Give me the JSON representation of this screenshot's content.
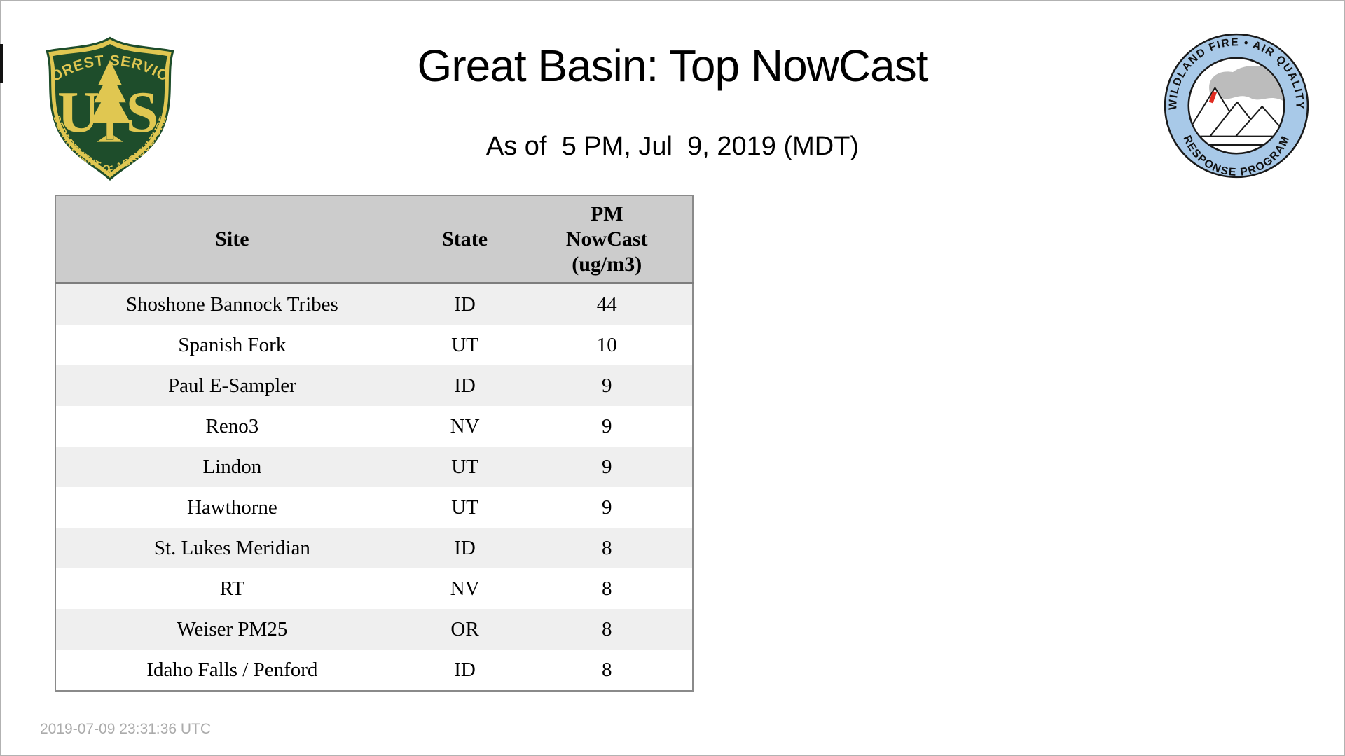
{
  "page": {
    "title": "Great Basin: Top NowCast",
    "subtitle": "As of  5 PM, Jul  9, 2019 (MDT)",
    "footer_timestamp": "2019-07-09 23:31:36 UTC"
  },
  "logos": {
    "forest_service": {
      "arc_top": "FOREST SERVICE",
      "letter_left": "U",
      "letter_right": "S",
      "arc_bottom": "DEPARTMENT OF AGRICULTURE",
      "green": "#1e4d2b",
      "gold": "#e0c751"
    },
    "wfaqrp": {
      "arc_top": "WILDLAND FIRE • AIR QUALITY",
      "arc_bottom": "RESPONSE PROGRAM",
      "ring_blue": "#a8c9e8",
      "smoke_gray": "#bcbcbc",
      "flame_red": "#e02b20"
    }
  },
  "table": {
    "header": {
      "site": "Site",
      "state": "State",
      "pm_lines": [
        "PM",
        "NowCast",
        "(ug/m3)"
      ]
    },
    "rows": [
      {
        "site": "Shoshone Bannock Tribes",
        "state": "ID",
        "value": "44"
      },
      {
        "site": "Spanish Fork",
        "state": "UT",
        "value": "10"
      },
      {
        "site": "Paul E-Sampler",
        "state": "ID",
        "value": "9"
      },
      {
        "site": "Reno3",
        "state": "NV",
        "value": "9"
      },
      {
        "site": "Lindon",
        "state": "UT",
        "value": "9"
      },
      {
        "site": "Hawthorne",
        "state": "UT",
        "value": "9"
      },
      {
        "site": "St. Lukes Meridian",
        "state": "ID",
        "value": "8"
      },
      {
        "site": "RT",
        "state": "NV",
        "value": "8"
      },
      {
        "site": "Weiser PM25",
        "state": "OR",
        "value": "8"
      },
      {
        "site": "Idaho Falls / Penford",
        "state": "ID",
        "value": "8"
      }
    ],
    "colors": {
      "header_bg": "#cccccc",
      "stripe_bg": "#efefef",
      "border": "#8a8a8a"
    }
  }
}
